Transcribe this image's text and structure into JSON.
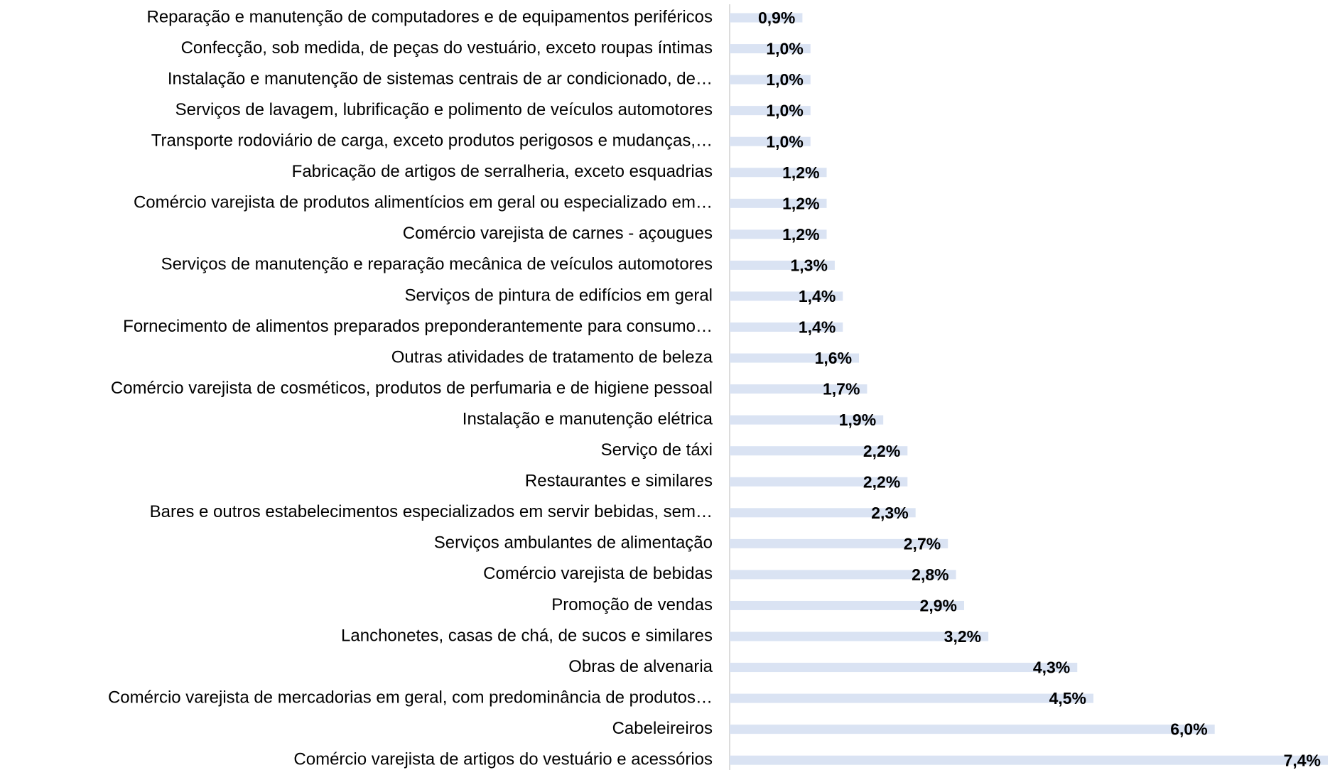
{
  "chart_data": {
    "type": "barh",
    "color": "#dae3f3",
    "categories": [
      "Reparação e manutenção de computadores e de equipamentos periféricos",
      "Confecção, sob medida, de peças do vestuário, exceto roupas íntimas",
      "Instalação e manutenção de sistemas centrais de ar condicionado, de…",
      "Serviços de lavagem, lubrificação e polimento de veículos automotores",
      "Transporte rodoviário de carga, exceto produtos perigosos e mudanças,…",
      "Fabricação de artigos de serralheria, exceto esquadrias",
      "Comércio varejista de produtos alimentícios em geral ou especializado em…",
      "Comércio varejista de carnes - açougues",
      "Serviços de manutenção e reparação mecânica de veículos automotores",
      "Serviços de pintura de edifícios em geral",
      "Fornecimento de alimentos preparados preponderantemente para consumo…",
      "Outras atividades de tratamento de beleza",
      "Comércio varejista de cosméticos, produtos de perfumaria e de higiene pessoal",
      "Instalação e manutenção elétrica",
      "Serviço de táxi",
      "Restaurantes e similares",
      "Bares e outros estabelecimentos especializados em servir bebidas, sem…",
      "Serviços ambulantes de alimentação",
      "Comércio varejista de bebidas",
      "Promoção de vendas",
      "Lanchonetes, casas de chá, de sucos e similares",
      "Obras de alvenaria",
      "Comércio varejista de mercadorias em geral, com predominância de produtos…",
      "Cabeleireiros",
      "Comércio varejista de artigos do vestuário e acessórios"
    ],
    "values": [
      0.9,
      1.0,
      1.0,
      1.0,
      1.0,
      1.2,
      1.2,
      1.2,
      1.3,
      1.4,
      1.4,
      1.6,
      1.7,
      1.9,
      2.2,
      2.2,
      2.3,
      2.7,
      2.8,
      2.9,
      3.2,
      4.3,
      4.5,
      6.0,
      7.4
    ],
    "value_labels": [
      "0,9%",
      "1,0%",
      "1,0%",
      "1,0%",
      "1,0%",
      "1,2%",
      "1,2%",
      "1,2%",
      "1,3%",
      "1,4%",
      "1,4%",
      "1,6%",
      "1,7%",
      "1,9%",
      "2,2%",
      "2,2%",
      "2,3%",
      "2,7%",
      "2,8%",
      "2,9%",
      "3,2%",
      "4,3%",
      "4,5%",
      "6,0%",
      "7,4%"
    ]
  }
}
